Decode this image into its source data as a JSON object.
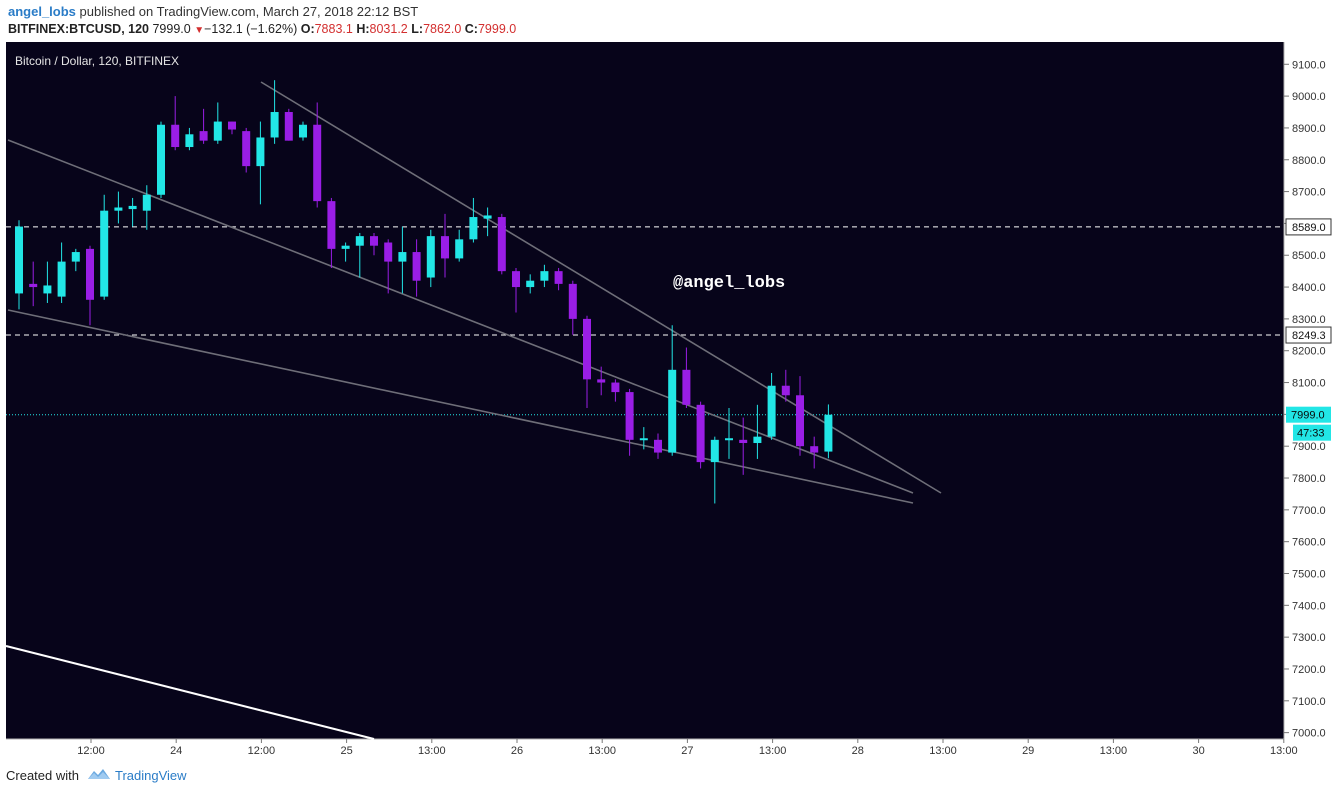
{
  "header": {
    "author": "angel_lobs",
    "published_text": " published on TradingView.com, March 27, 2018 22:12 BST",
    "symbol": "BITFINEX:BTCUSD, 120",
    "last": "7999.0",
    "change": "−132.1 (−1.62%)",
    "o_label": "O:",
    "o_value": "7883.1",
    "h_label": "H:",
    "h_value": "8031.2",
    "l_label": "L:",
    "l_value": "7862.0",
    "c_label": "C:",
    "c_value": "7999.0"
  },
  "footer": {
    "created_with": "Created with",
    "brand": "TradingView"
  },
  "colors": {
    "background": "#07041a",
    "bull": "#22e6e6",
    "bear": "#9a1ee6",
    "trendline": "#6e6e78",
    "white_line": "#ffffff",
    "price_line": "#22e6e6"
  },
  "chart_data": {
    "type": "candlestick",
    "title": "Bitcoin / Dollar, 120, BITFINEX",
    "watermark": "@angel_lobs",
    "y_range": [
      6980,
      9170
    ],
    "y_ticks": [
      "9100.0",
      "9000.0",
      "8900.0",
      "8800.0",
      "8700.0",
      "8600.0",
      "8500.0",
      "8400.0",
      "8300.0",
      "8200.0",
      "8100.0",
      "8000.0",
      "7900.0",
      "7800.0",
      "7700.0",
      "7600.0",
      "7500.0",
      "7400.0",
      "7300.0",
      "7200.0",
      "7100.0",
      "7000.0"
    ],
    "x_ticks": [
      "12:00",
      "24",
      "12:00",
      "25",
      "13:00",
      "26",
      "13:00",
      "27",
      "13:00",
      "28",
      "13:00",
      "29",
      "13:00",
      "30",
      "13:00"
    ],
    "horizontal_levels": [
      8589.0,
      8249.3
    ],
    "current_price": "7999.0",
    "countdown": "47:33",
    "candles": [
      {
        "o": 8380,
        "h": 8610,
        "l": 8330,
        "c": 8590
      },
      {
        "o": 8410,
        "h": 8480,
        "l": 8340,
        "c": 8400
      },
      {
        "o": 8380,
        "h": 8480,
        "l": 8350,
        "c": 8405
      },
      {
        "o": 8370,
        "h": 8540,
        "l": 8350,
        "c": 8480
      },
      {
        "o": 8480,
        "h": 8520,
        "l": 8450,
        "c": 8510
      },
      {
        "o": 8520,
        "h": 8530,
        "l": 8280,
        "c": 8360
      },
      {
        "o": 8370,
        "h": 8690,
        "l": 8360,
        "c": 8640
      },
      {
        "o": 8640,
        "h": 8700,
        "l": 8600,
        "c": 8650
      },
      {
        "o": 8645,
        "h": 8680,
        "l": 8590,
        "c": 8655
      },
      {
        "o": 8640,
        "h": 8720,
        "l": 8580,
        "c": 8690
      },
      {
        "o": 8690,
        "h": 8920,
        "l": 8680,
        "c": 8910
      },
      {
        "o": 8910,
        "h": 9000,
        "l": 8830,
        "c": 8840
      },
      {
        "o": 8840,
        "h": 8900,
        "l": 8830,
        "c": 8880
      },
      {
        "o": 8890,
        "h": 8960,
        "l": 8850,
        "c": 8860
      },
      {
        "o": 8860,
        "h": 8980,
        "l": 8850,
        "c": 8920
      },
      {
        "o": 8920,
        "h": 8920,
        "l": 8880,
        "c": 8895
      },
      {
        "o": 8890,
        "h": 8900,
        "l": 8760,
        "c": 8780
      },
      {
        "o": 8780,
        "h": 8920,
        "l": 8660,
        "c": 8870
      },
      {
        "o": 8870,
        "h": 9050,
        "l": 8850,
        "c": 8950
      },
      {
        "o": 8950,
        "h": 8960,
        "l": 8860,
        "c": 8860
      },
      {
        "o": 8870,
        "h": 8920,
        "l": 8860,
        "c": 8910
      },
      {
        "o": 8910,
        "h": 8980,
        "l": 8650,
        "c": 8670
      },
      {
        "o": 8670,
        "h": 8680,
        "l": 8460,
        "c": 8520
      },
      {
        "o": 8520,
        "h": 8540,
        "l": 8480,
        "c": 8530
      },
      {
        "o": 8530,
        "h": 8570,
        "l": 8430,
        "c": 8560
      },
      {
        "o": 8560,
        "h": 8570,
        "l": 8500,
        "c": 8530
      },
      {
        "o": 8540,
        "h": 8550,
        "l": 8380,
        "c": 8480
      },
      {
        "o": 8480,
        "h": 8590,
        "l": 8380,
        "c": 8510
      },
      {
        "o": 8510,
        "h": 8550,
        "l": 8370,
        "c": 8420
      },
      {
        "o": 8430,
        "h": 8580,
        "l": 8400,
        "c": 8560
      },
      {
        "o": 8560,
        "h": 8630,
        "l": 8430,
        "c": 8490
      },
      {
        "o": 8490,
        "h": 8580,
        "l": 8480,
        "c": 8550
      },
      {
        "o": 8550,
        "h": 8680,
        "l": 8540,
        "c": 8620
      },
      {
        "o": 8615,
        "h": 8650,
        "l": 8560,
        "c": 8625
      },
      {
        "o": 8620,
        "h": 8630,
        "l": 8440,
        "c": 8450
      },
      {
        "o": 8450,
        "h": 8460,
        "l": 8320,
        "c": 8400
      },
      {
        "o": 8400,
        "h": 8440,
        "l": 8380,
        "c": 8420
      },
      {
        "o": 8420,
        "h": 8470,
        "l": 8400,
        "c": 8450
      },
      {
        "o": 8450,
        "h": 8460,
        "l": 8390,
        "c": 8410
      },
      {
        "o": 8410,
        "h": 8420,
        "l": 8250,
        "c": 8300
      },
      {
        "o": 8300,
        "h": 8310,
        "l": 8020,
        "c": 8110
      },
      {
        "o": 8110,
        "h": 8150,
        "l": 8060,
        "c": 8100
      },
      {
        "o": 8100,
        "h": 8110,
        "l": 8040,
        "c": 8070
      },
      {
        "o": 8070,
        "h": 8080,
        "l": 7870,
        "c": 7920
      },
      {
        "o": 7920,
        "h": 7960,
        "l": 7890,
        "c": 7925
      },
      {
        "o": 7920,
        "h": 7940,
        "l": 7860,
        "c": 7880
      },
      {
        "o": 7880,
        "h": 8280,
        "l": 7870,
        "c": 8140
      },
      {
        "o": 8140,
        "h": 8210,
        "l": 8020,
        "c": 8030
      },
      {
        "o": 8030,
        "h": 8040,
        "l": 7830,
        "c": 7850
      },
      {
        "o": 7850,
        "h": 7930,
        "l": 7720,
        "c": 7920
      },
      {
        "o": 7920,
        "h": 8020,
        "l": 7860,
        "c": 7925
      },
      {
        "o": 7920,
        "h": 7990,
        "l": 7810,
        "c": 7910
      },
      {
        "o": 7910,
        "h": 8030,
        "l": 7860,
        "c": 7930
      },
      {
        "o": 7930,
        "h": 8130,
        "l": 7920,
        "c": 8090
      },
      {
        "o": 8090,
        "h": 8140,
        "l": 8040,
        "c": 8060
      },
      {
        "o": 8060,
        "h": 8120,
        "l": 7870,
        "c": 7900
      },
      {
        "o": 7900,
        "h": 7930,
        "l": 7830,
        "c": 7880
      },
      {
        "o": 7883.1,
        "h": 8031.2,
        "l": 7862.0,
        "c": 7999.0
      }
    ]
  }
}
